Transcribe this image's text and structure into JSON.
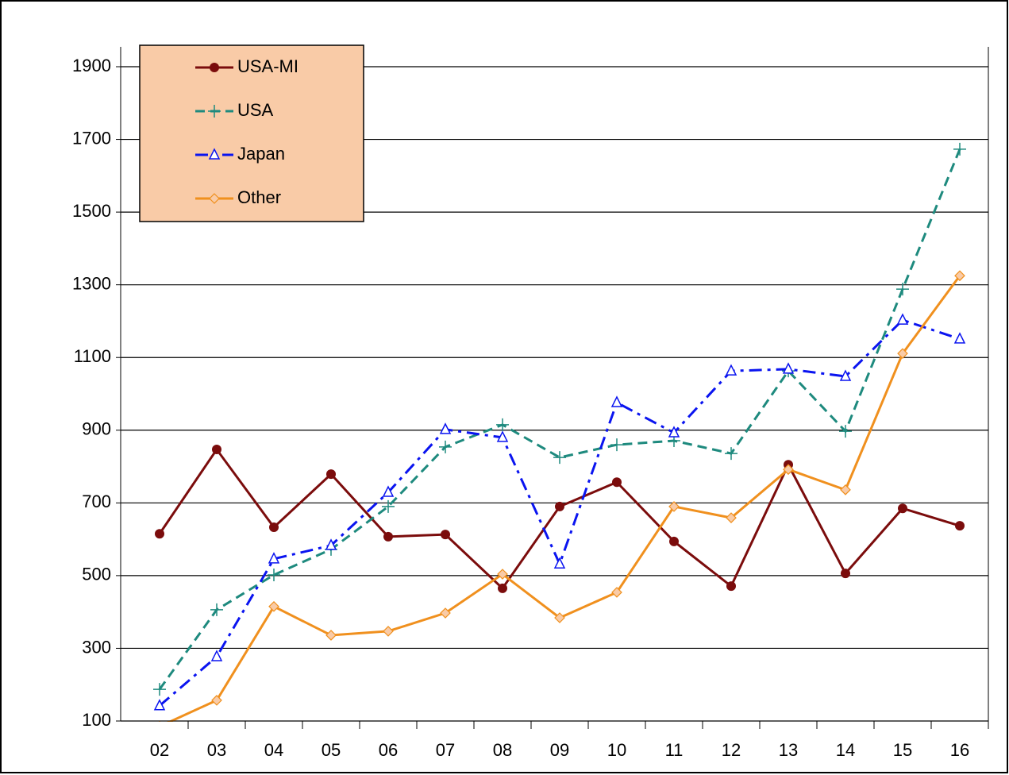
{
  "chart_data": {
    "type": "line",
    "categories": [
      "02",
      "03",
      "04",
      "05",
      "06",
      "07",
      "08",
      "09",
      "10",
      "11",
      "12",
      "13",
      "14",
      "15",
      "16"
    ],
    "series": [
      {
        "name": "USA-MI",
        "color": "#7b0c0c",
        "marker": "circle",
        "dash": "solid",
        "values": [
          615,
          847,
          633,
          779,
          607,
          613,
          465,
          690,
          757,
          594,
          471,
          805,
          506,
          685,
          637
        ]
      },
      {
        "name": "USA",
        "color": "#1e8a7e",
        "marker": "plus",
        "dash": "dash",
        "values": [
          187,
          406,
          502,
          572,
          690,
          854,
          915,
          825,
          860,
          871,
          836,
          1063,
          897,
          1288,
          1673
        ]
      },
      {
        "name": "Japan",
        "color": "#0a14f0",
        "marker": "triangle",
        "dash": "dashdot",
        "values": [
          142,
          277,
          546,
          583,
          729,
          902,
          880,
          532,
          976,
          893,
          1063,
          1068,
          1048,
          1203,
          1151
        ]
      },
      {
        "name": "Other",
        "color": "#f0901e",
        "marker": "diamond",
        "dash": "solid",
        "values": [
          85,
          157,
          415,
          336,
          347,
          397,
          504,
          384,
          454,
          690,
          659,
          792,
          736,
          1111,
          1325
        ]
      }
    ],
    "ylim": [
      100,
      1900
    ],
    "yticks": [
      100,
      300,
      500,
      700,
      900,
      1100,
      1300,
      1500,
      1700,
      1900
    ],
    "grid": true,
    "legend": "top-left",
    "legend_color": "#f9cba7"
  }
}
